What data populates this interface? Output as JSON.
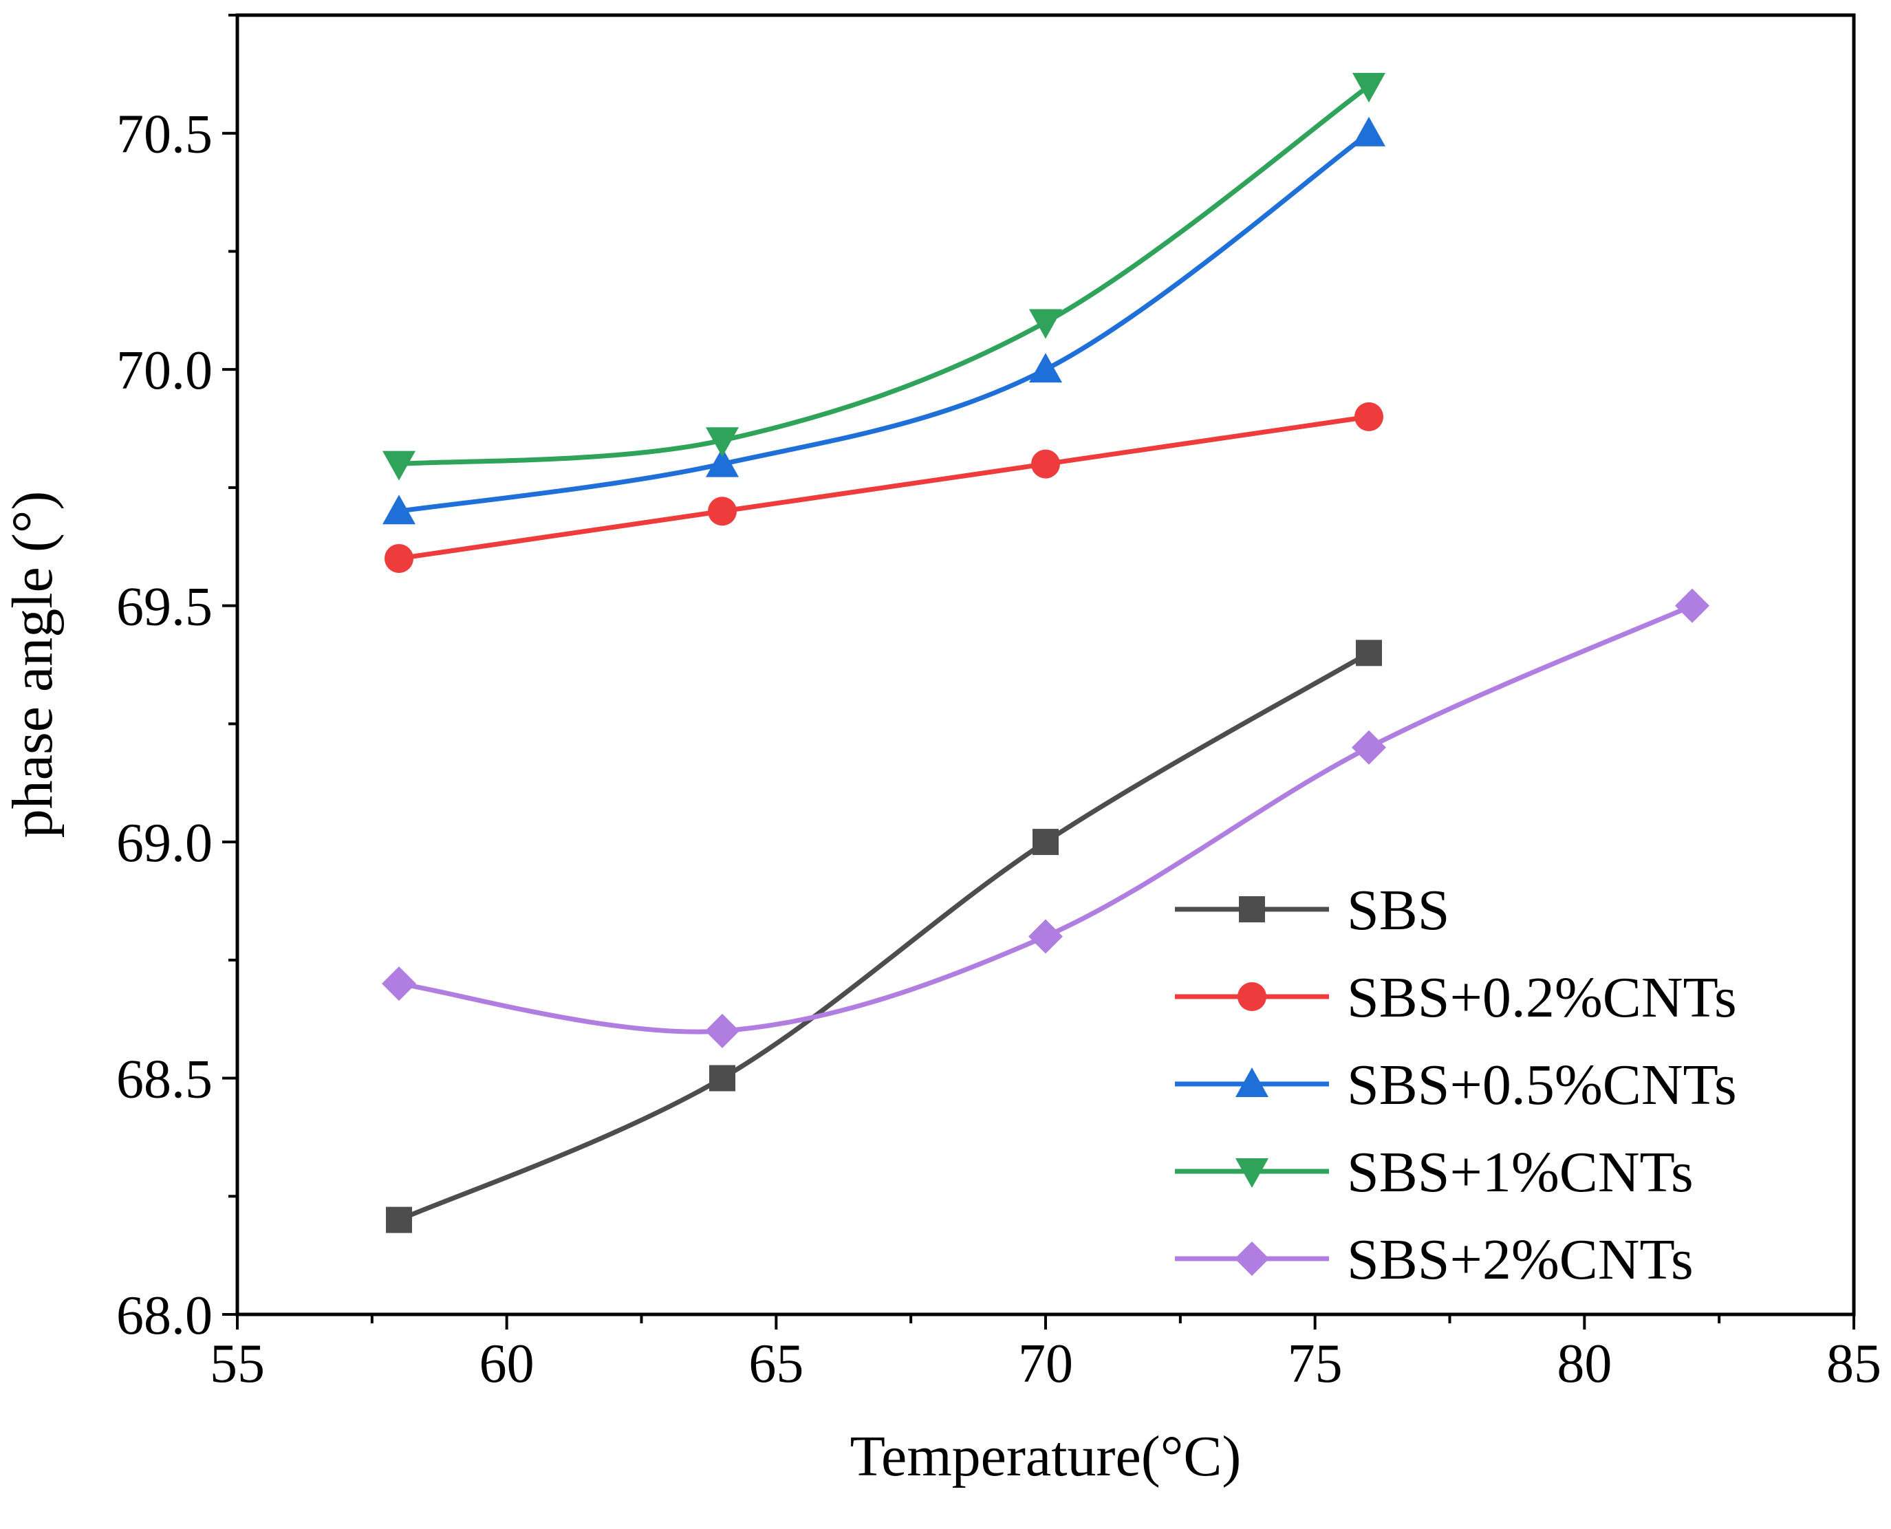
{
  "chart_data": {
    "type": "line",
    "title": "",
    "xlabel": "Temperature(°C)",
    "ylabel": "phase angle (°)",
    "xlim": [
      55,
      85
    ],
    "ylim": [
      68.0,
      70.75
    ],
    "xticks": [
      55,
      60,
      65,
      70,
      75,
      80,
      85
    ],
    "xtick_labels": [
      "55",
      "60",
      "65",
      "70",
      "75",
      "80",
      "85"
    ],
    "yticks": [
      68.0,
      68.5,
      69.0,
      69.5,
      70.0,
      70.5
    ],
    "ytick_labels": [
      "68.0",
      "68.5",
      "69.0",
      "69.5",
      "70.0",
      "70.5"
    ],
    "legend_position": "bottom-right",
    "series": [
      {
        "name": "SBS",
        "color": "#4d4d4d",
        "marker": "square",
        "x": [
          58,
          64,
          70,
          76
        ],
        "y": [
          68.2,
          68.5,
          69.0,
          69.4
        ]
      },
      {
        "name": "SBS+0.2%CNTs",
        "color": "#ee3b3b",
        "marker": "circle",
        "x": [
          58,
          64,
          70,
          76
        ],
        "y": [
          69.6,
          69.7,
          69.8,
          69.9
        ]
      },
      {
        "name": "SBS+0.5%CNTs",
        "color": "#1f6fd9",
        "marker": "triangle-up",
        "x": [
          58,
          64,
          70,
          76
        ],
        "y": [
          69.7,
          69.8,
          70.0,
          70.5
        ]
      },
      {
        "name": "SBS+1%CNTs",
        "color": "#2fa35a",
        "marker": "triangle-down",
        "x": [
          58,
          64,
          70,
          76
        ],
        "y": [
          69.8,
          69.85,
          70.1,
          70.6
        ]
      },
      {
        "name": "SBS+2%CNTs",
        "color": "#b07ee0",
        "marker": "diamond",
        "x": [
          58,
          64,
          70,
          76,
          82
        ],
        "y": [
          68.7,
          68.6,
          68.8,
          69.2,
          69.5
        ]
      }
    ]
  }
}
